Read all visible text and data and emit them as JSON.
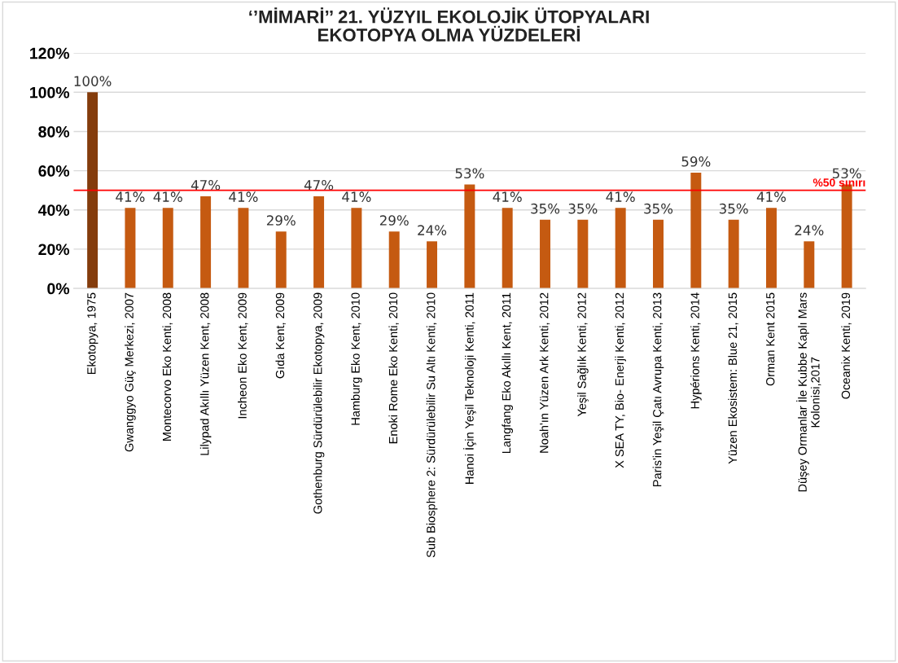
{
  "chart_data": {
    "type": "bar",
    "title": "‘’MİMARİ’’ 21. YÜZYIL EKOLOJİK ÜTOPYALARI\nEKOTOPYA OLMA YÜZDELERİ",
    "categories": [
      "Ekotopya, 1975",
      "Gwanggyo Güç Merkezi, 2007",
      "Montecorvo Eko Kenti, 2008",
      "Lilypad Akıllı Yüzen Kent, 2008",
      "Incheon Eko Kent, 2009",
      "Gıda Kent, 2009",
      "Gothenburg Sürdürülebilir Ekotopya, 2009",
      "Hamburg Eko Kent, 2010",
      "Enoki Rome Eko Kenti, 2010",
      "Sub Biosphere 2: Sürdürülebilir Su Altı Kenti, 2010",
      "Hanoi İçin Yeşil Teknoloji Kenti, 2011",
      "Langfang Eko Akıllı Kent, 2011",
      "Noah'ın Yüzen Ark Kenti, 2012",
      "Yeşil Sağlık Kenti, 2012",
      "X SEA TY, Bio- Enerji Kenti, 2012",
      "Paris'in Yeşil Çatı Avrupa Kenti, 2013",
      "Hypérions Kenti, 2014",
      "Yüzen Ekosistem: Blue 21, 2015",
      "Orman Kent 2015",
      "Düşey Ormanlar İle Kubbe Kaplı Mars\nKolonisi,2017",
      "Oceanix Kenti, 2019"
    ],
    "values": [
      100,
      41,
      41,
      47,
      41,
      29,
      47,
      41,
      29,
      24,
      53,
      41,
      35,
      35,
      41,
      35,
      59,
      35,
      41,
      24,
      53
    ],
    "value_labels": [
      "100%",
      "41%",
      "41%",
      "47%",
      "41%",
      "29%",
      "47%",
      "41%",
      "29%",
      "24%",
      "53%",
      "41%",
      "35%",
      "35%",
      "41%",
      "35%",
      "59%",
      "35%",
      "41%",
      "24%",
      "53%"
    ],
    "colors": [
      "#843c0c",
      "#c55a11",
      "#c55a11",
      "#c55a11",
      "#c55a11",
      "#c55a11",
      "#c55a11",
      "#c55a11",
      "#c55a11",
      "#c55a11",
      "#c55a11",
      "#c55a11",
      "#c55a11",
      "#c55a11",
      "#c55a11",
      "#c55a11",
      "#c55a11",
      "#c55a11",
      "#c55a11",
      "#c55a11",
      "#c55a11"
    ],
    "ylim": [
      0,
      120
    ],
    "yticks": [
      {
        "value": 0,
        "label": "0%"
      },
      {
        "value": 20,
        "label": "20%"
      },
      {
        "value": 40,
        "label": "40%"
      },
      {
        "value": 60,
        "label": "60%"
      },
      {
        "value": 80,
        "label": "80%"
      },
      {
        "value": 100,
        "label": "100%"
      },
      {
        "value": 120,
        "label": "120%"
      }
    ],
    "ref_lines": [
      {
        "axis": "y",
        "value": 50,
        "label": "%50 sınırı",
        "color": "#ff0000"
      }
    ],
    "grid": "y",
    "legend": false
  }
}
